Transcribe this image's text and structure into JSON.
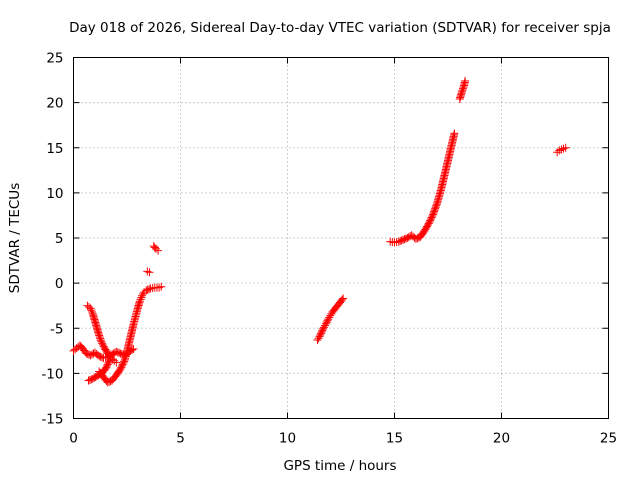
{
  "chart_data": {
    "type": "scatter",
    "title": "Day 018 of 2026, Sidereal Day-to-day VTEC variation (SDTVAR) for receiver spja",
    "xlabel": "GPS time / hours",
    "ylabel": "SDTVAR / TECUs",
    "xlim": [
      0,
      25
    ],
    "ylim": [
      -15,
      25
    ],
    "xticks": [
      "0",
      "5",
      "10",
      "15",
      "20",
      "25"
    ],
    "yticks": [
      "-15",
      "-10",
      "-5",
      "0",
      "5",
      "10",
      "15",
      "20",
      "25"
    ],
    "grid": true,
    "marker": "plus",
    "color": "#ff0000",
    "segments": [
      {
        "x": [
          0.0,
          0.15,
          0.3,
          0.45,
          0.6,
          0.8,
          1.0,
          1.2,
          1.4,
          1.6,
          1.8,
          2.0,
          2.2,
          2.4,
          2.6,
          2.8
        ],
        "y": [
          -7.5,
          -7.2,
          -6.9,
          -7.3,
          -7.8,
          -8.0,
          -7.7,
          -8.1,
          -8.3,
          -8.2,
          -7.9,
          -7.6,
          -7.8,
          -8.0,
          -7.6,
          -7.3
        ]
      },
      {
        "x": [
          0.65,
          0.8,
          0.9,
          1.0,
          1.1,
          1.2,
          1.3,
          1.45,
          1.6,
          1.75,
          1.9,
          2.0
        ],
        "y": [
          -2.5,
          -2.8,
          -3.4,
          -4.2,
          -5.0,
          -5.8,
          -6.5,
          -7.2,
          -7.8,
          -8.3,
          -8.6,
          -8.8
        ]
      },
      {
        "x": [
          0.7,
          0.9,
          1.1,
          1.3,
          1.5,
          1.6,
          1.7
        ],
        "y": [
          -10.8,
          -10.6,
          -10.3,
          -10.0,
          -9.5,
          -9.0,
          -8.5
        ]
      },
      {
        "x": [
          1.2,
          1.4,
          1.6,
          1.8,
          2.0,
          2.2,
          2.4,
          2.5,
          2.6,
          2.7,
          2.8,
          2.9,
          3.0,
          3.1,
          3.2,
          3.3
        ],
        "y": [
          -9.8,
          -10.4,
          -11.0,
          -10.8,
          -10.2,
          -9.5,
          -8.5,
          -7.6,
          -6.6,
          -5.6,
          -4.6,
          -3.7,
          -2.8,
          -2.0,
          -1.4,
          -1.0
        ]
      },
      {
        "x": [
          3.4,
          3.6,
          3.8,
          4.0,
          4.1
        ],
        "y": [
          -0.8,
          -0.6,
          -0.5,
          -0.5,
          -0.4
        ]
      },
      {
        "x": [
          3.45,
          3.55
        ],
        "y": [
          1.3,
          1.2
        ]
      },
      {
        "x": [
          3.75,
          3.85,
          3.95
        ],
        "y": [
          4.1,
          3.8,
          3.6
        ]
      },
      {
        "x": [
          11.4,
          11.5,
          11.6,
          11.7,
          11.8,
          11.9,
          12.0,
          12.1,
          12.2,
          12.3,
          12.4,
          12.5,
          12.6
        ],
        "y": [
          -6.3,
          -5.9,
          -5.4,
          -4.9,
          -4.5,
          -4.0,
          -3.6,
          -3.2,
          -2.9,
          -2.6,
          -2.3,
          -2.0,
          -1.7
        ]
      },
      {
        "x": [
          14.8,
          15.0,
          15.2,
          15.4,
          15.6,
          15.8,
          16.0,
          16.2,
          16.4,
          16.6,
          16.8,
          17.0,
          17.2,
          17.4,
          17.5,
          17.6,
          17.7,
          17.8
        ],
        "y": [
          4.6,
          4.5,
          4.6,
          4.8,
          5.0,
          5.3,
          4.9,
          5.1,
          5.8,
          6.6,
          7.6,
          8.9,
          10.6,
          12.6,
          13.6,
          14.6,
          15.6,
          16.6
        ]
      },
      {
        "x": [
          18.05,
          18.15,
          18.25,
          18.3
        ],
        "y": [
          20.4,
          21.2,
          21.9,
          22.4
        ]
      },
      {
        "x": [
          22.6,
          22.7,
          22.8,
          22.9,
          23.0
        ],
        "y": [
          14.5,
          14.7,
          14.8,
          14.9,
          15.0
        ]
      }
    ]
  }
}
